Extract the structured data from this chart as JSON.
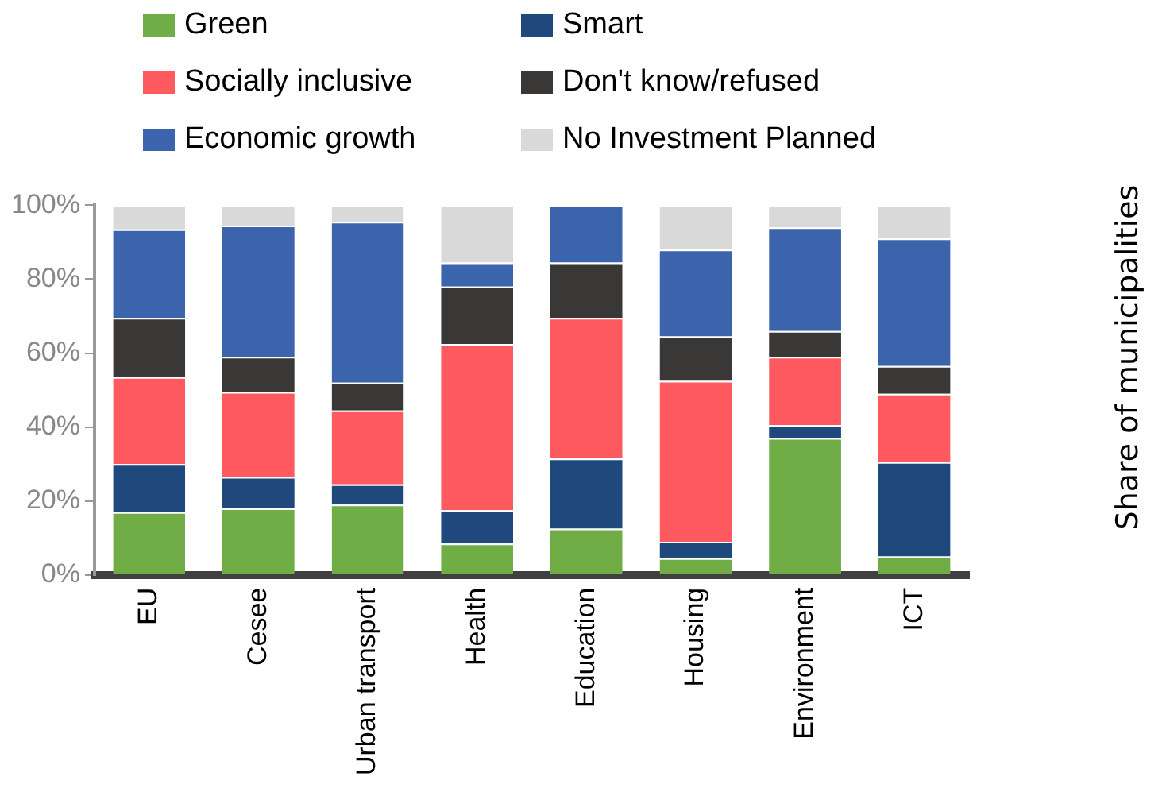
{
  "chart_data": {
    "type": "bar",
    "stacked": true,
    "ylabel": "Share of municipalities",
    "legend": "top",
    "grid": false,
    "categories": [
      "EU",
      "Cesee",
      "Urban transport",
      "Health",
      "Education",
      "Housing",
      "Environment",
      "ICT"
    ],
    "series": [
      {
        "name": "Green",
        "color": "#70ad47",
        "values": [
          17,
          18,
          19,
          8.5,
          12.5,
          4.5,
          37,
          5
        ]
      },
      {
        "name": "Smart",
        "color": "#1f497d",
        "values": [
          13,
          8.5,
          5.5,
          9,
          19,
          4.5,
          3.5,
          25.5
        ]
      },
      {
        "name": "Socially inclusive",
        "color": "#ff5a5f",
        "values": [
          23.5,
          23,
          20,
          45,
          38,
          43.5,
          18.5,
          18.5
        ]
      },
      {
        "name": "Don't know/refused",
        "color": "#3a3836",
        "values": [
          16,
          9.5,
          7.5,
          15.5,
          15,
          12,
          7,
          7.5
        ]
      },
      {
        "name": "Economic growth",
        "color": "#3c64ad",
        "values": [
          24,
          35.5,
          43.5,
          6.5,
          15.5,
          23.5,
          28,
          34.5
        ]
      },
      {
        "name": "No Investment Planned",
        "color": "#d9d9d9",
        "values": [
          6.5,
          5.5,
          4.5,
          15.5,
          0,
          12,
          6,
          9
        ]
      }
    ],
    "ylim": [
      0,
      100
    ],
    "yticks": [
      {
        "value": 0,
        "label": "0%"
      },
      {
        "value": 20,
        "label": "20%"
      },
      {
        "value": 40,
        "label": "40%"
      },
      {
        "value": 60,
        "label": "60%"
      },
      {
        "value": 80,
        "label": "80%"
      },
      {
        "value": 100,
        "label": "100%"
      }
    ]
  }
}
